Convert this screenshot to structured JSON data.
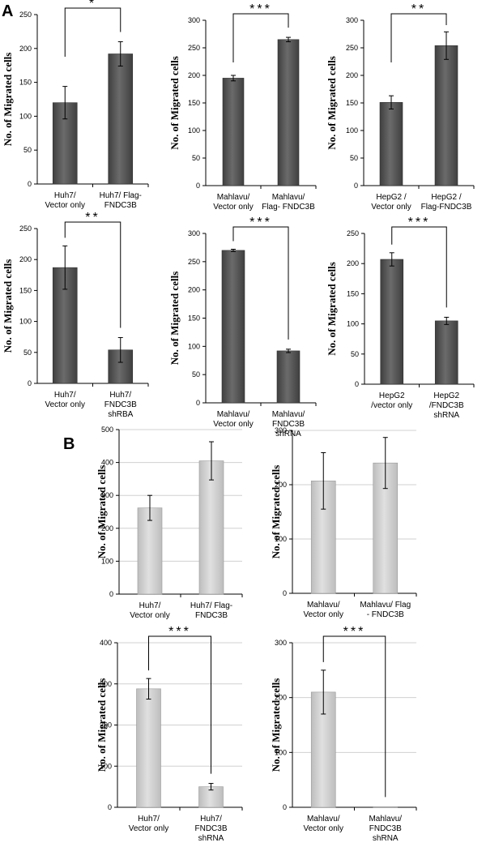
{
  "panel_labels": [
    "A",
    "B"
  ],
  "colors": {
    "dark_bar": "#595959",
    "light_bar": "#cfcfcf",
    "axis": "#000000",
    "grid": "#d0d0d0"
  },
  "chart_data": [
    {
      "id": "a1",
      "type": "bar",
      "ylabel": "No. of Migrated cells",
      "ylim": [
        0,
        250
      ],
      "yticks": [
        0,
        50,
        100,
        150,
        200,
        250
      ],
      "tick_labels": [
        "0",
        "50",
        "100",
        "150",
        "200",
        "250"
      ],
      "categories": [
        [
          "Huh7/",
          "Vector only"
        ],
        [
          "Huh7/ Flag-",
          "FNDC3B"
        ]
      ],
      "values": [
        120,
        192
      ],
      "errors": [
        24,
        18
      ],
      "significance": "*",
      "style": "dark",
      "grid": false
    },
    {
      "id": "a2",
      "type": "bar",
      "ylabel": "No. of Migrated cells",
      "ylim": [
        0,
        300
      ],
      "yticks": [
        0,
        50,
        100,
        150,
        200,
        250,
        300
      ],
      "tick_labels": [
        "0",
        "50",
        "100",
        "150",
        "200",
        "250",
        "300"
      ],
      "categories": [
        [
          "Mahlavu/",
          "Vector only"
        ],
        [
          "Mahlavu/",
          "Flag- FNDC3B"
        ]
      ],
      "values": [
        195,
        265
      ],
      "errors": [
        5,
        4
      ],
      "significance": "***",
      "style": "dark",
      "grid": false
    },
    {
      "id": "a3",
      "type": "bar",
      "ylabel": "No. of Migrated cells",
      "ylim": [
        0,
        300
      ],
      "yticks": [
        0,
        50,
        100,
        150,
        200,
        250,
        300
      ],
      "tick_labels": [
        "0",
        "50",
        "100",
        "150",
        "200",
        "250",
        "300"
      ],
      "categories": [
        [
          "HepG2 /",
          "Vector only"
        ],
        [
          "HepG2 /",
          "Flag-FNDC3B"
        ]
      ],
      "values": [
        151,
        254
      ],
      "errors": [
        12,
        25
      ],
      "significance": "**",
      "style": "dark",
      "grid": false
    },
    {
      "id": "a4",
      "type": "bar",
      "ylabel": "No. of Migrated cells",
      "ylim": [
        0,
        250
      ],
      "yticks": [
        0,
        50,
        100,
        150,
        200,
        250
      ],
      "tick_labels": [
        "0",
        "50",
        "100",
        "150",
        "200",
        "250"
      ],
      "categories": [
        [
          "Huh7/",
          "Vector only"
        ],
        [
          "Huh7/",
          "FNDC3B",
          "shRBA"
        ]
      ],
      "values": [
        187,
        54
      ],
      "errors": [
        35,
        20
      ],
      "significance": "**",
      "style": "dark",
      "grid": false
    },
    {
      "id": "a5",
      "type": "bar",
      "ylabel": "No. of Migrated cells",
      "ylim": [
        0,
        300
      ],
      "yticks": [
        0,
        50,
        100,
        150,
        200,
        250,
        300
      ],
      "tick_labels": [
        "0",
        "50",
        "100",
        "150",
        "200",
        "250",
        "300"
      ],
      "categories": [
        [
          "Mahlavu/",
          "Vector only"
        ],
        [
          "Mahlavu/",
          "FNDC3B",
          "shRNA"
        ]
      ],
      "values": [
        270,
        92
      ],
      "errors": [
        2,
        3
      ],
      "significance": "***",
      "style": "dark",
      "grid": false
    },
    {
      "id": "a6",
      "type": "bar",
      "ylabel": "No. of Migrated cells",
      "ylim": [
        0,
        250
      ],
      "yticks": [
        0,
        50,
        100,
        150,
        200,
        250
      ],
      "tick_labels": [
        "0",
        "50",
        "100",
        "150",
        "200",
        "250"
      ],
      "categories": [
        [
          "HepG2",
          "/vector only"
        ],
        [
          "HepG2",
          "/FNDC3B",
          "shRNA"
        ]
      ],
      "values": [
        207,
        105
      ],
      "errors": [
        11,
        6
      ],
      "significance": "***",
      "style": "dark",
      "grid": false
    },
    {
      "id": "b1",
      "type": "bar",
      "ylabel": "No. of Migrated cells",
      "ylim": [
        0,
        500
      ],
      "yticks": [
        0,
        100,
        200,
        300,
        400,
        500
      ],
      "tick_labels": [
        "0",
        "100",
        "200",
        "300",
        "400",
        "500"
      ],
      "categories": [
        [
          "Huh7/",
          "Vector only"
        ],
        [
          "Huh7/ Flag-",
          "FNDC3B"
        ]
      ],
      "values": [
        262,
        405
      ],
      "errors": [
        38,
        58
      ],
      "significance": "",
      "style": "light",
      "grid": true
    },
    {
      "id": "b2",
      "type": "bar",
      "ylabel": "No. of Migrated cells",
      "ylim": [
        0,
        300
      ],
      "yticks": [
        0,
        100,
        200,
        300
      ],
      "tick_labels": [
        "0",
        "100",
        "200",
        "300"
      ],
      "categories": [
        [
          "Mahlavu/",
          "Vector only"
        ],
        [
          "Mahlavu/ Flag",
          "- FNDC3B"
        ]
      ],
      "values": [
        207,
        240
      ],
      "errors": [
        52,
        47
      ],
      "significance": "",
      "style": "light",
      "grid": true
    },
    {
      "id": "b3",
      "type": "bar",
      "ylabel": "No. of Migrated cells",
      "ylim": [
        0,
        400
      ],
      "yticks": [
        0,
        100,
        200,
        300,
        400
      ],
      "tick_labels": [
        "0",
        "100",
        "200",
        "300",
        "400"
      ],
      "categories": [
        [
          "Huh7/",
          "Vector only"
        ],
        [
          "Huh7/",
          "FNDC3B",
          "shRNA"
        ]
      ],
      "values": [
        288,
        50
      ],
      "errors": [
        25,
        8
      ],
      "significance": "***",
      "style": "light",
      "grid": true
    },
    {
      "id": "b4",
      "type": "bar",
      "ylabel": "No. of Migrated cells",
      "ylim": [
        0,
        300
      ],
      "yticks": [
        0,
        100,
        200,
        300
      ],
      "tick_labels": [
        "0",
        "100",
        "200",
        "300"
      ],
      "categories": [
        [
          "Mahlavu/",
          "Vector only"
        ],
        [
          "Mahlavu/",
          "FNDC3B",
          "shRNA"
        ]
      ],
      "values": [
        210,
        1
      ],
      "errors": [
        40,
        0
      ],
      "significance": "***",
      "style": "light",
      "grid": true
    }
  ]
}
